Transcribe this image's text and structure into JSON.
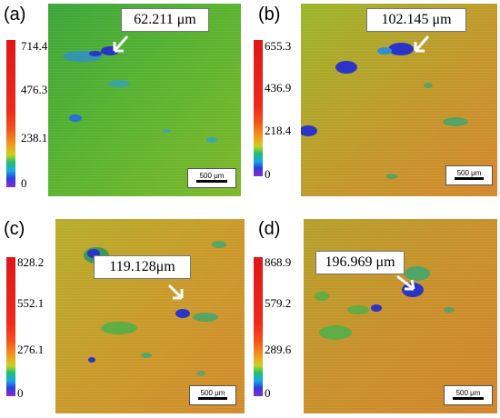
{
  "panels": [
    {
      "label": "(a)",
      "callout": "62.211 μm",
      "scale_text": "500 μm",
      "ticks": [
        "714.4",
        "476.3",
        "238.1",
        "0"
      ]
    },
    {
      "label": "(b)",
      "callout": "102.145 μm",
      "scale_text": "500 μm",
      "ticks": [
        "655.3",
        "436.9",
        "218.4",
        "0"
      ]
    },
    {
      "label": "(c)",
      "callout": "119.128μm",
      "scale_text": "500 μm",
      "ticks": [
        "828.2",
        "552.1",
        "276.1",
        "0"
      ]
    },
    {
      "label": "(d)",
      "callout": "196.969 μm",
      "scale_text": "500 μm",
      "ticks": [
        "868.9",
        "579.2",
        "289.6",
        "0"
      ]
    }
  ],
  "colors": {
    "green": "#4caf2c",
    "orange": "#d98a2a",
    "deep_blue": "#2a34c8",
    "red": "#e0161a"
  }
}
